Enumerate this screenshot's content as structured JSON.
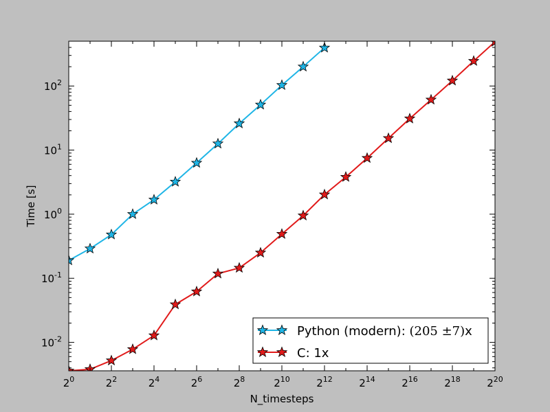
{
  "chart_data": {
    "type": "line",
    "xscale": "log2",
    "yscale": "log10",
    "xlabel": "N_timesteps",
    "ylabel": "Time [s]",
    "xlim_exponent": [
      0,
      20
    ],
    "x_tick_exponents": [
      0,
      2,
      4,
      6,
      8,
      10,
      12,
      14,
      16,
      18,
      20
    ],
    "x_tick_base": "2",
    "ylim": [
      0.0036,
      500
    ],
    "y_ticks": [
      0.01,
      0.1,
      1,
      10,
      100
    ],
    "y_tick_labels": [
      {
        "base": "10",
        "exp": "-2"
      },
      {
        "base": "10",
        "exp": "-1"
      },
      {
        "base": "10",
        "exp": "0"
      },
      {
        "base": "10",
        "exp": "1"
      },
      {
        "base": "10",
        "exp": "2"
      }
    ],
    "grid": false,
    "legend_position": "lower-right",
    "series": [
      {
        "name": "Python (modern): (205±7)x",
        "name_main": "Python (modern): ",
        "name_math": "(205 ±7)",
        "name_suffix": "x",
        "color": "#1fb5e6",
        "marker": "star",
        "x_exponent": [
          0,
          1,
          2,
          3,
          4,
          5,
          6,
          7,
          8,
          9,
          10,
          11,
          12
        ],
        "y": [
          0.19,
          0.29,
          0.48,
          1.0,
          1.68,
          3.2,
          6.3,
          12.6,
          26,
          51,
          103,
          200,
          395
        ]
      },
      {
        "name": "C: 1x",
        "name_main": "C: 1x",
        "name_math": "",
        "name_suffix": "",
        "color": "#e11a1a",
        "marker": "star",
        "x_exponent": [
          0,
          1,
          2,
          3,
          4,
          5,
          6,
          7,
          8,
          9,
          10,
          11,
          12,
          13,
          14,
          15,
          16,
          17,
          18,
          19,
          20
        ],
        "y": [
          0.0036,
          0.0038,
          0.0052,
          0.0078,
          0.0128,
          0.039,
          0.062,
          0.118,
          0.145,
          0.25,
          0.49,
          0.95,
          2.02,
          3.8,
          7.5,
          15.3,
          31,
          61,
          121,
          245,
          490
        ]
      }
    ]
  }
}
